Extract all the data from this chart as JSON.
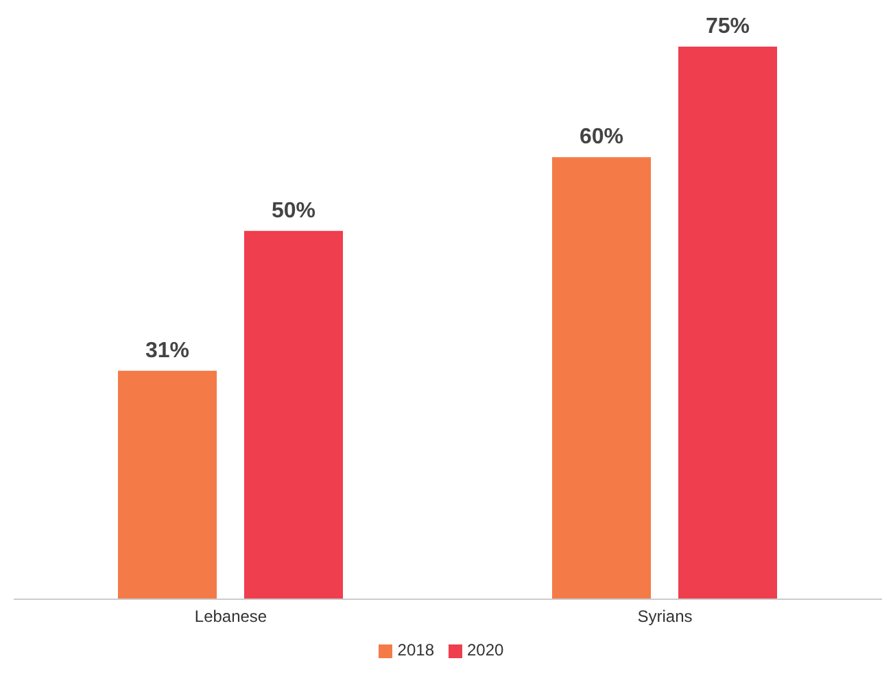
{
  "chart_data": {
    "type": "bar",
    "categories": [
      "Lebanese",
      "Syrians"
    ],
    "series": [
      {
        "name": "2018",
        "color": "#f47b47",
        "values": [
          31,
          60
        ],
        "value_labels": [
          "31%",
          "60%"
        ]
      },
      {
        "name": "2020",
        "color": "#ef3e4e",
        "values": [
          50,
          75
        ],
        "value_labels": [
          "50%",
          "75%"
        ]
      }
    ],
    "legend": "bottom",
    "grid": false
  }
}
